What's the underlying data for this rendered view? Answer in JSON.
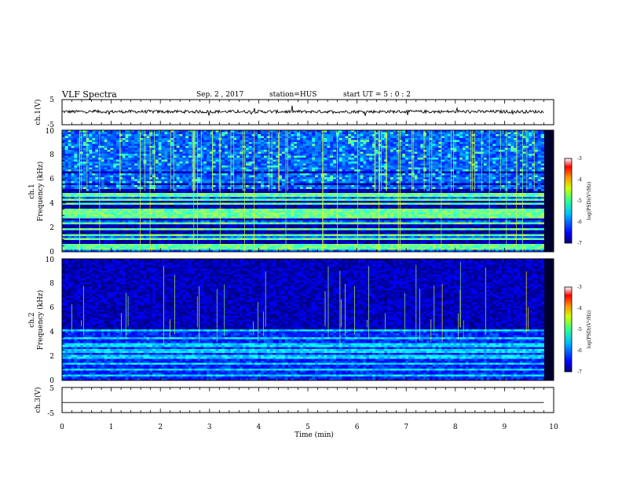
{
  "header": {
    "title": "VLF Spectra",
    "date": "Sep. 2 , 2017",
    "station": "station=HUS",
    "start": "start UT =  5 : 0 : 2"
  },
  "chart_data": [
    {
      "type": "line",
      "name": "ch1-waveform",
      "ylabel": "ch.1(V)",
      "ylim": [
        -5,
        5
      ],
      "yticks": [
        "5",
        "-5"
      ],
      "xlim": [
        0,
        10
      ],
      "signal_extent_min": 9.8,
      "signal_level": 0.2
    },
    {
      "type": "heatmap",
      "name": "ch1-spectrogram",
      "ylabel": "ch.1 Frequency (kHz)",
      "ylabel_lines": [
        "ch.1",
        "Frequency (kHz)"
      ],
      "ylim": [
        0,
        10
      ],
      "yticks": [
        "0",
        "2",
        "4",
        "6",
        "8",
        "10"
      ],
      "xlim": [
        0,
        10
      ],
      "colorbar": {
        "label": "log(PSD)(V²/Hz)",
        "range": [
          -7,
          -3
        ],
        "ticks": [
          "-3",
          "-4",
          "-5",
          "-6",
          "-7"
        ]
      },
      "bright_bands_khz": [
        0.3,
        0.5,
        1.0,
        1.4,
        1.9,
        2.3,
        2.8,
        3.1,
        3.4,
        3.9,
        4.3,
        4.7,
        5.0
      ],
      "dark_bands_khz": [
        0.8,
        1.6,
        2.1,
        2.6,
        3.7,
        4.1,
        4.9,
        5.1,
        5.6,
        6.5
      ],
      "burst_band_khz": [
        5.0,
        10.0
      ]
    },
    {
      "type": "heatmap",
      "name": "ch2-spectrogram",
      "ylabel": "ch.2 Frequency (kHz)",
      "ylabel_lines": [
        "ch.2",
        "Frequency (kHz)"
      ],
      "ylim": [
        0,
        10
      ],
      "yticks": [
        "0",
        "2",
        "4",
        "6",
        "8",
        "10"
      ],
      "xlim": [
        0,
        10
      ],
      "colorbar": {
        "label": "log(PSD)(V²/Hz)",
        "range": [
          -7,
          -3
        ],
        "ticks": [
          "-3",
          "-4",
          "-5",
          "-6",
          "-7"
        ]
      },
      "bright_bands_khz": [
        0.4,
        0.9,
        1.4,
        1.9,
        2.4,
        2.9,
        3.5,
        4.1
      ],
      "dark_bands_khz": [
        4.3,
        4.8
      ]
    },
    {
      "type": "line",
      "name": "ch3-waveform",
      "ylabel": "ch.3(V)",
      "ylim": [
        -5,
        5
      ],
      "yticks": [
        "5",
        "-5"
      ],
      "xlim": [
        0,
        10
      ],
      "signal_extent_min": 9.8,
      "signal_level": -1.0
    }
  ],
  "xaxis": {
    "label": "Time (min)",
    "ticks": [
      "0",
      "1",
      "2",
      "3",
      "4",
      "5",
      "6",
      "7",
      "8",
      "9",
      "10"
    ]
  }
}
